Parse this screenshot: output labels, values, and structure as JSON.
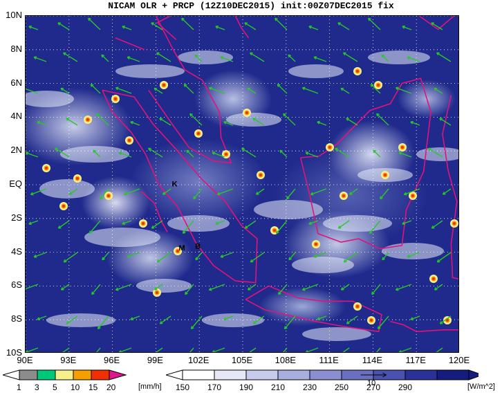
{
  "title": "NICAM OLR + PRCP (12Z10DEC2015) init:00Z07DEC2015 fix",
  "map": {
    "lat_labels": [
      "10N",
      "8N",
      "6N",
      "4N",
      "2N",
      "EQ",
      "2S",
      "4S",
      "6S",
      "8S",
      "10S"
    ],
    "lon_labels": [
      "90E",
      "93E",
      "96E",
      "99E",
      "102E",
      "105E",
      "108E",
      "111E",
      "114E",
      "117E",
      "120E"
    ],
    "lat_range": [
      -10,
      10
    ],
    "lon_range": [
      90,
      120
    ],
    "grid": "dotted",
    "place_markers": [
      {
        "label": "K",
        "lon": 100.3,
        "lat": -0.1
      },
      {
        "label": "M",
        "lon": 100.8,
        "lat": -3.9
      },
      {
        "label": "B",
        "lon": 101.9,
        "lat": -3.8
      }
    ]
  },
  "precip_colorbar": {
    "ticks": [
      "1",
      "3",
      "5",
      "10",
      "15",
      "20"
    ],
    "unit": "[mm/h]",
    "colors": [
      "#8c8c8c",
      "#00c87a",
      "#f5ef8c",
      "#f5a000",
      "#f03000",
      "#e0148c"
    ]
  },
  "olr_colorbar": {
    "ticks": [
      "150",
      "170",
      "190",
      "210",
      "230",
      "250",
      "270",
      "290"
    ],
    "unit": "[W/m^2]",
    "vector_label": "10",
    "colors": [
      "#ffffff",
      "#e6e8f6",
      "#c8cceb",
      "#a8aedd",
      "#8a90cf",
      "#6a70bf",
      "#4a52af",
      "#2a3299",
      "#141c80"
    ]
  },
  "colors": {
    "coastline": "#e0147a",
    "wind_vectors": "#28c828",
    "background_low_olr": "#1f2a8c"
  }
}
